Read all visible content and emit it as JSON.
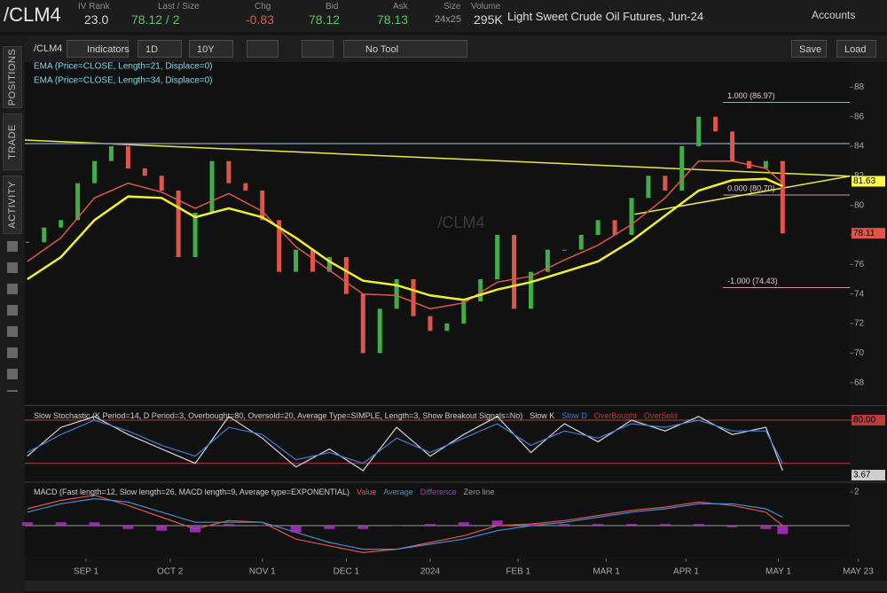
{
  "header": {
    "symbol": "/CLM4",
    "fields": [
      {
        "label": "IV Rank",
        "value": "23.0"
      },
      {
        "label": "Last / Size",
        "value": "78.12 / 2"
      },
      {
        "label": "Chg",
        "value": "-0.83"
      },
      {
        "label": "Bid",
        "value": "78.12"
      },
      {
        "label": "Ask",
        "value": "78.13"
      },
      {
        "label": "Size",
        "value": "24x25"
      },
      {
        "label": "Volume",
        "value": "295K"
      }
    ],
    "description": "Light Sweet Crude Oil Futures, Jun-24",
    "accounts": "Accounts"
  },
  "toolbar": {
    "symbol": "/CLM4",
    "indicators": "Indicators",
    "period": "1D",
    "range": "10Y",
    "tool": "No Tool",
    "save": "Save",
    "load": "Load"
  },
  "sidebar": {
    "tabs": [
      "POSITIONS",
      "TRADE",
      "ACTIVITY"
    ]
  },
  "chart_data": [
    {
      "type": "candlestick",
      "title": "/CLM4",
      "up_color": "#3fae49",
      "down_color": "#e0554a",
      "x": [
        -14,
        -10,
        -6,
        -2,
        2,
        6,
        10,
        14,
        18,
        22,
        26,
        30,
        34,
        38,
        42,
        46,
        50,
        54,
        58,
        62,
        66,
        70,
        74,
        78,
        82,
        86,
        90,
        94,
        98,
        102,
        106,
        110,
        114,
        118,
        122,
        126,
        130,
        134,
        138,
        142,
        146,
        150,
        154,
        158,
        162,
        166
      ],
      "values": [
        77.5,
        78.5,
        79.0,
        81.5,
        83.0,
        84.0,
        82.5,
        82.0,
        81.0,
        76.5,
        79.5,
        83.0,
        81.5,
        81.0,
        79.0,
        75.5,
        77.0,
        75.5,
        76.5,
        74.0,
        70.0,
        73.0,
        75.0,
        72.5,
        71.5,
        72.0,
        73.5,
        75.0,
        78.0,
        73.0,
        75.5,
        77.0,
        77.0,
        78.0,
        79.0,
        78.0,
        80.5,
        82.0,
        81.0,
        84.0,
        86.0,
        85.0,
        83.0,
        82.5,
        83.0,
        78.1
      ],
      "series": [
        {
          "name": "EMA (Price=CLOSE, Length=21, Displace=0)",
          "color": "#e0554a",
          "x": [
            -14,
            -6,
            2,
            10,
            18,
            26,
            34,
            42,
            50,
            58,
            66,
            74,
            82,
            90,
            98,
            106,
            114,
            122,
            130,
            138,
            146,
            154,
            162,
            166
          ],
          "values": [
            76.2,
            77.8,
            80.5,
            81.5,
            80.9,
            79.8,
            80.8,
            79.6,
            77.2,
            75.6,
            74.0,
            73.9,
            73.0,
            73.4,
            74.8,
            75.2,
            76.3,
            77.3,
            78.7,
            80.5,
            83.0,
            83.0,
            82.5,
            81.5
          ]
        },
        {
          "name": "EMA (Price=CLOSE, Length=34, Displace=0)",
          "color": "#f0f030",
          "x": [
            -14,
            -6,
            2,
            10,
            18,
            26,
            34,
            42,
            50,
            58,
            66,
            74,
            82,
            90,
            98,
            106,
            114,
            122,
            130,
            138,
            146,
            154,
            162,
            166
          ],
          "values": [
            75.0,
            76.5,
            79.0,
            80.6,
            80.5,
            79.2,
            79.8,
            79.2,
            77.8,
            76.2,
            74.9,
            74.6,
            73.9,
            73.6,
            74.3,
            74.8,
            75.5,
            76.2,
            77.6,
            79.3,
            81.0,
            81.7,
            81.8,
            81.3
          ]
        }
      ],
      "lines": [
        {
          "color": "#e8e84a",
          "x": [
            -14.6,
            182
          ],
          "values": [
            84.42,
            81.97
          ]
        },
        {
          "color": "#e8e84a",
          "x": [
            130.7,
            182
          ],
          "values": [
            79.4,
            81.97
          ]
        },
        {
          "color": "#6f8fb0",
          "x": [
            -14.6,
            182
          ],
          "values": [
            84.18,
            84.18
          ]
        }
      ],
      "levels": [
        {
          "value": 86.97,
          "label": "1.000 (86.97)"
        },
        {
          "value": 80.7,
          "label": "0.000 (80.70)"
        },
        {
          "value": 74.43,
          "label": "-1.000 (74.43)"
        }
      ],
      "level_start": 151.8,
      "price_labels": [
        {
          "value": 81.63,
          "color": "#ffff40"
        },
        {
          "value": 78.11,
          "color": "#e0554a"
        }
      ],
      "xlim": [
        -14.6,
        182
      ],
      "ylim": [
        66.6,
        89.7
      ],
      "xticks": [
        {
          "value": 0,
          "label": "SEP 1"
        },
        {
          "value": 20,
          "label": "OCT 2"
        },
        {
          "value": 42,
          "label": "NOV 1"
        },
        {
          "value": 62,
          "label": "DEC 1"
        },
        {
          "value": 82,
          "label": "2024"
        },
        {
          "value": 103,
          "label": "FEB 1"
        },
        {
          "value": 124,
          "label": "MAR 1"
        },
        {
          "value": 143,
          "label": "APR 1"
        },
        {
          "value": 165,
          "label": "MAY 1"
        },
        {
          "value": 184,
          "label": "MAY 23"
        }
      ],
      "yticks": [
        68,
        70,
        72,
        74,
        76,
        78,
        80,
        82,
        84,
        86,
        88
      ]
    },
    {
      "type": "line",
      "title": "Slow Stochastic (K Period=14, D Period=3, Overbought=80, Oversold=20, Average Type=SIMPLE, Length=3, Show Breakout Signals=No)",
      "series": [
        {
          "name": "Slow K",
          "color": "#d8d8d8",
          "x": [
            -14,
            -6,
            2,
            10,
            18,
            26,
            34,
            42,
            50,
            58,
            66,
            74,
            82,
            90,
            98,
            106,
            114,
            122,
            130,
            138,
            146,
            154,
            162,
            166
          ],
          "values": [
            30,
            70,
            85,
            60,
            40,
            20,
            85,
            55,
            15,
            40,
            10,
            70,
            30,
            60,
            85,
            35,
            75,
            50,
            80,
            65,
            85,
            60,
            70,
            10
          ]
        },
        {
          "name": "Slow D",
          "color": "#3f7fd8",
          "x": [
            -14,
            -6,
            2,
            10,
            18,
            26,
            34,
            42,
            50,
            58,
            66,
            74,
            82,
            90,
            98,
            106,
            114,
            122,
            130,
            138,
            146,
            154,
            162,
            166
          ],
          "values": [
            35,
            60,
            80,
            65,
            45,
            30,
            70,
            60,
            25,
            35,
            20,
            55,
            35,
            55,
            75,
            45,
            65,
            55,
            75,
            70,
            80,
            65,
            65,
            20
          ]
        }
      ],
      "levels": [
        {
          "name": "OverBought",
          "value": 80,
          "color": "#c03a3a"
        },
        {
          "name": "OverSold",
          "value": 20,
          "color": "#c03a3a"
        }
      ],
      "price_labels": [
        {
          "value": 80,
          "label": "80.00",
          "color": "#c03a3a"
        },
        {
          "value": 3.67,
          "color": "#cfcfcf"
        }
      ],
      "xlim": [
        -14.6,
        182
      ],
      "ylim": [
        -3.7,
        97.2
      ],
      "yticks": [
        80
      ]
    },
    {
      "type": "line",
      "title": "MACD (Fast length=12, Slow length=26, MACD length=9, Average type=EXPONENTIAL)",
      "series": [
        {
          "name": "Value",
          "color": "#e0554a",
          "x": [
            -14,
            -6,
            2,
            10,
            18,
            26,
            34,
            42,
            50,
            58,
            66,
            74,
            82,
            90,
            98,
            106,
            114,
            122,
            130,
            138,
            146,
            154,
            162,
            166
          ],
          "values": [
            1.0,
            1.5,
            1.8,
            1.2,
            0.5,
            -0.2,
            0.3,
            0.2,
            -0.8,
            -1.2,
            -1.6,
            -1.4,
            -1.0,
            -0.6,
            0.0,
            0.1,
            0.3,
            0.6,
            0.9,
            1.1,
            1.4,
            1.2,
            0.8,
            0.0
          ]
        },
        {
          "name": "Average",
          "color": "#3f8fd8",
          "x": [
            -14,
            -6,
            2,
            10,
            18,
            26,
            34,
            42,
            50,
            58,
            66,
            74,
            82,
            90,
            98,
            106,
            114,
            122,
            130,
            138,
            146,
            154,
            162,
            166
          ],
          "values": [
            0.8,
            1.3,
            1.6,
            1.4,
            0.8,
            0.2,
            0.2,
            0.2,
            -0.4,
            -1.0,
            -1.4,
            -1.4,
            -1.1,
            -0.8,
            -0.3,
            0.0,
            0.2,
            0.5,
            0.8,
            1.0,
            1.3,
            1.3,
            1.0,
            0.5
          ]
        },
        {
          "name": "Difference",
          "color": "#b030c8",
          "style": "bar",
          "x": [
            -14,
            -6,
            2,
            10,
            18,
            26,
            34,
            42,
            50,
            58,
            66,
            74,
            82,
            90,
            98,
            106,
            114,
            122,
            130,
            138,
            146,
            154,
            162,
            166
          ],
          "values": [
            0.2,
            0.2,
            0.2,
            -0.2,
            -0.3,
            -0.4,
            0.1,
            0,
            -0.4,
            -0.2,
            -0.2,
            0,
            0.1,
            0.2,
            0.3,
            0.1,
            0.1,
            0.1,
            0.1,
            0.1,
            0.1,
            -0.1,
            -0.2,
            -0.5
          ]
        }
      ],
      "levels": [
        {
          "name": "Zero line",
          "value": 0,
          "color": "#9a9a9a"
        }
      ],
      "xlim": [
        -14.6,
        182
      ],
      "ylim": [
        -1.84,
        2.47
      ],
      "yticks": [
        2
      ]
    }
  ]
}
